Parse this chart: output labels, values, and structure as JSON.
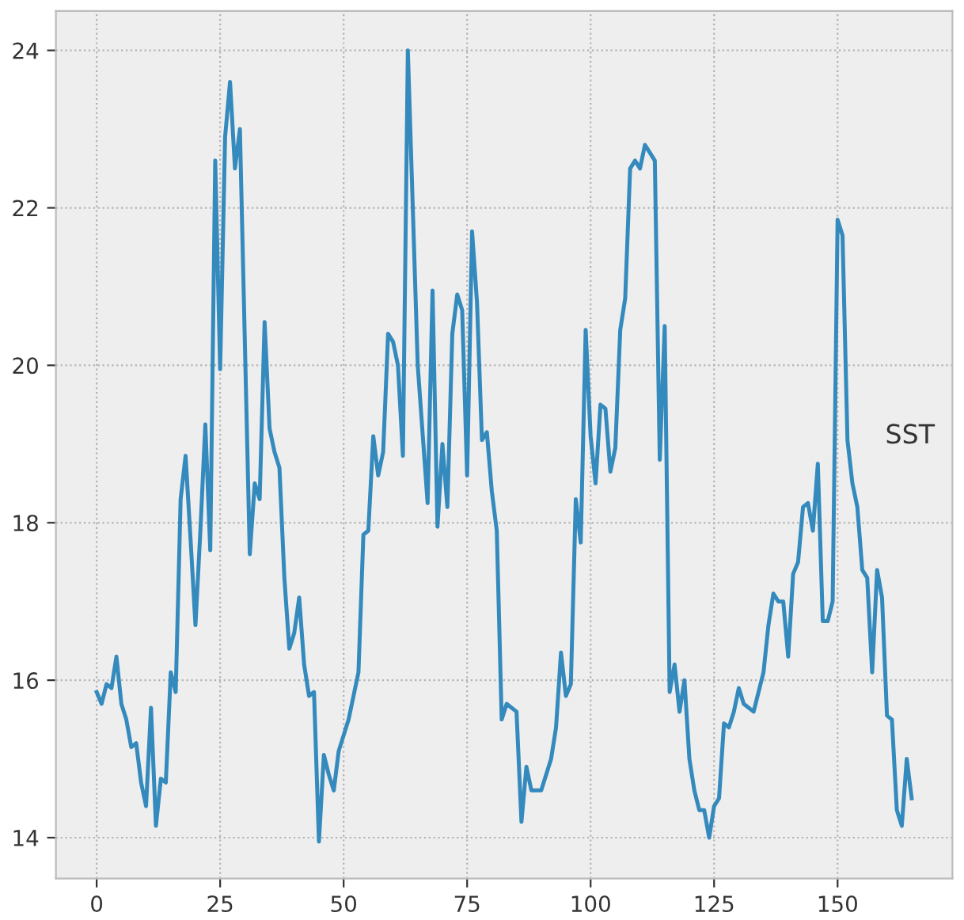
{
  "chart_data": {
    "type": "line",
    "x": [
      0,
      1,
      2,
      3,
      4,
      5,
      6,
      7,
      8,
      9,
      10,
      11,
      12,
      13,
      14,
      15,
      16,
      17,
      18,
      19,
      20,
      21,
      22,
      23,
      24,
      25,
      26,
      27,
      28,
      29,
      31,
      32,
      33,
      34,
      35,
      36,
      37,
      38,
      39,
      40,
      41,
      42,
      43,
      44,
      45,
      46,
      47,
      48,
      49,
      51,
      53,
      54,
      55,
      56,
      57,
      58,
      59,
      60,
      61,
      62,
      63,
      64,
      65,
      67,
      68,
      69,
      70,
      71,
      72,
      73,
      74,
      75,
      76,
      77,
      78,
      79,
      80,
      81,
      82,
      83,
      85,
      86,
      87,
      88,
      90,
      92,
      93,
      94,
      95,
      96,
      97,
      98,
      99,
      100,
      101,
      102,
      103,
      104,
      105,
      106,
      107,
      108,
      109,
      110,
      111,
      112,
      113,
      114,
      115,
      116,
      117,
      118,
      119,
      120,
      121,
      122,
      123,
      124,
      125,
      126,
      127,
      128,
      129,
      130,
      131,
      133,
      135,
      136,
      137,
      138,
      139,
      140,
      141,
      142,
      143,
      144,
      145,
      146,
      147,
      148,
      149,
      150,
      151,
      152,
      153,
      154,
      155,
      156,
      157,
      158,
      159,
      160,
      161,
      162,
      163,
      164,
      165
    ],
    "series": [
      {
        "color": "#348abd",
        "values": [
          15.85,
          15.7,
          15.95,
          15.9,
          16.3,
          15.7,
          15.5,
          15.15,
          15.2,
          14.7,
          14.4,
          15.65,
          14.15,
          14.75,
          14.7,
          16.1,
          15.85,
          18.3,
          18.85,
          17.8,
          16.7,
          17.9,
          19.25,
          17.65,
          22.6,
          19.95,
          22.9,
          23.6,
          22.5,
          23.0,
          17.6,
          18.5,
          18.3,
          20.55,
          19.2,
          18.9,
          18.7,
          17.3,
          16.4,
          16.6,
          17.05,
          16.2,
          15.8,
          15.85,
          13.95,
          15.05,
          14.8,
          14.6,
          15.1,
          15.5,
          16.1,
          17.85,
          17.9,
          19.1,
          18.6,
          18.9,
          20.4,
          20.3,
          20.0,
          18.85,
          24.0,
          22.0,
          20.0,
          18.25,
          20.95,
          17.95,
          19.0,
          18.2,
          20.4,
          20.9,
          20.7,
          18.6,
          21.7,
          20.8,
          19.05,
          19.15,
          18.4,
          17.9,
          15.5,
          15.7,
          15.6,
          14.2,
          14.9,
          14.6,
          14.6,
          15.0,
          15.4,
          16.35,
          15.8,
          15.95,
          18.3,
          17.75,
          20.45,
          19.1,
          18.5,
          19.5,
          19.45,
          18.65,
          18.95,
          20.45,
          20.85,
          22.5,
          22.6,
          22.5,
          22.8,
          22.7,
          22.6,
          18.8,
          20.5,
          15.85,
          16.2,
          15.6,
          16.0,
          15.0,
          14.6,
          14.35,
          14.35,
          14.0,
          14.4,
          14.5,
          15.45,
          15.4,
          15.6,
          15.9,
          15.7,
          15.6,
          16.1,
          16.7,
          17.1,
          17.0,
          17.0,
          16.3,
          17.35,
          17.5,
          18.2,
          18.25,
          17.9,
          18.75,
          16.75,
          16.75,
          17.0,
          21.85,
          21.65,
          19.05,
          18.5,
          18.2,
          17.4,
          17.3,
          16.1,
          17.4,
          17.05,
          15.55,
          15.5,
          14.35,
          14.15,
          15.0,
          14.5
        ]
      }
    ],
    "xlim": [
      -8.25,
      173.25
    ],
    "xticks": [
      0,
      25,
      50,
      75,
      100,
      125,
      150
    ],
    "ylim": [
      13.48,
      24.5
    ],
    "yticks": [
      14,
      16,
      18,
      20,
      22,
      24
    ],
    "grid": true,
    "line_style": "solid",
    "marker": "none",
    "annotations": [
      "SST"
    ]
  }
}
